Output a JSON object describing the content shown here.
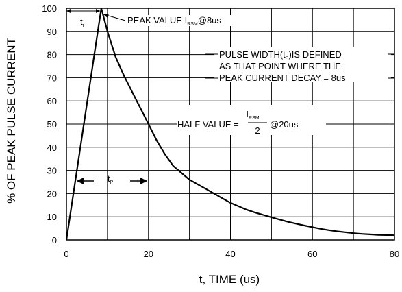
{
  "chart_data": {
    "type": "line",
    "xlabel": "t, TIME (us)",
    "ylabel": "% OF PEAK PULSE CURRENT",
    "xlim": [
      0,
      80
    ],
    "ylim": [
      0,
      100
    ],
    "x_ticks": [
      "0",
      "20",
      "40",
      "60",
      "80"
    ],
    "y_ticks": [
      "0",
      "10",
      "20",
      "30",
      "40",
      "50",
      "60",
      "70",
      "80",
      "90",
      "100"
    ],
    "grid": true,
    "series": [
      {
        "x": [
          0,
          8.5,
          10,
          12,
          14,
          16,
          18,
          20,
          22,
          24,
          26,
          28,
          30,
          32,
          34,
          36,
          38,
          40,
          42,
          44,
          46,
          48,
          50,
          52,
          54,
          56,
          58,
          60,
          62,
          64,
          66,
          68,
          70,
          72,
          74,
          76,
          78,
          80
        ],
        "y": [
          0,
          100,
          90,
          79,
          71,
          64,
          57,
          50,
          43,
          37,
          32,
          29,
          26,
          24,
          22,
          20,
          18,
          16,
          14.5,
          13,
          11.8,
          10.8,
          9.8,
          8.8,
          7.8,
          7,
          6.2,
          5.5,
          4.8,
          4.2,
          3.7,
          3.3,
          2.9,
          2.6,
          2.4,
          2.2,
          2.1,
          2.0
        ]
      }
    ],
    "annotations": {
      "tr_label": "t",
      "tr_sub": "r",
      "tp_label": "t",
      "tp_sub": "P",
      "peak_text": "PEAK VALUE I",
      "peak_sub": "RSM",
      "peak_suffix": "@8us",
      "pw_line1_a": "PULSE WIDTH(t",
      "pw_line1_sub": "P",
      "pw_line1_b": ")IS DEFINED",
      "pw_line2": "AS THAT POINT WHERE THE",
      "pw_line3": "PEAK CURRENT DECAY = 8us",
      "half_text": "HALF VALUE =",
      "half_num": "I",
      "half_num_sub": "RSM",
      "half_den": "2",
      "half_suffix": "@20us"
    }
  }
}
